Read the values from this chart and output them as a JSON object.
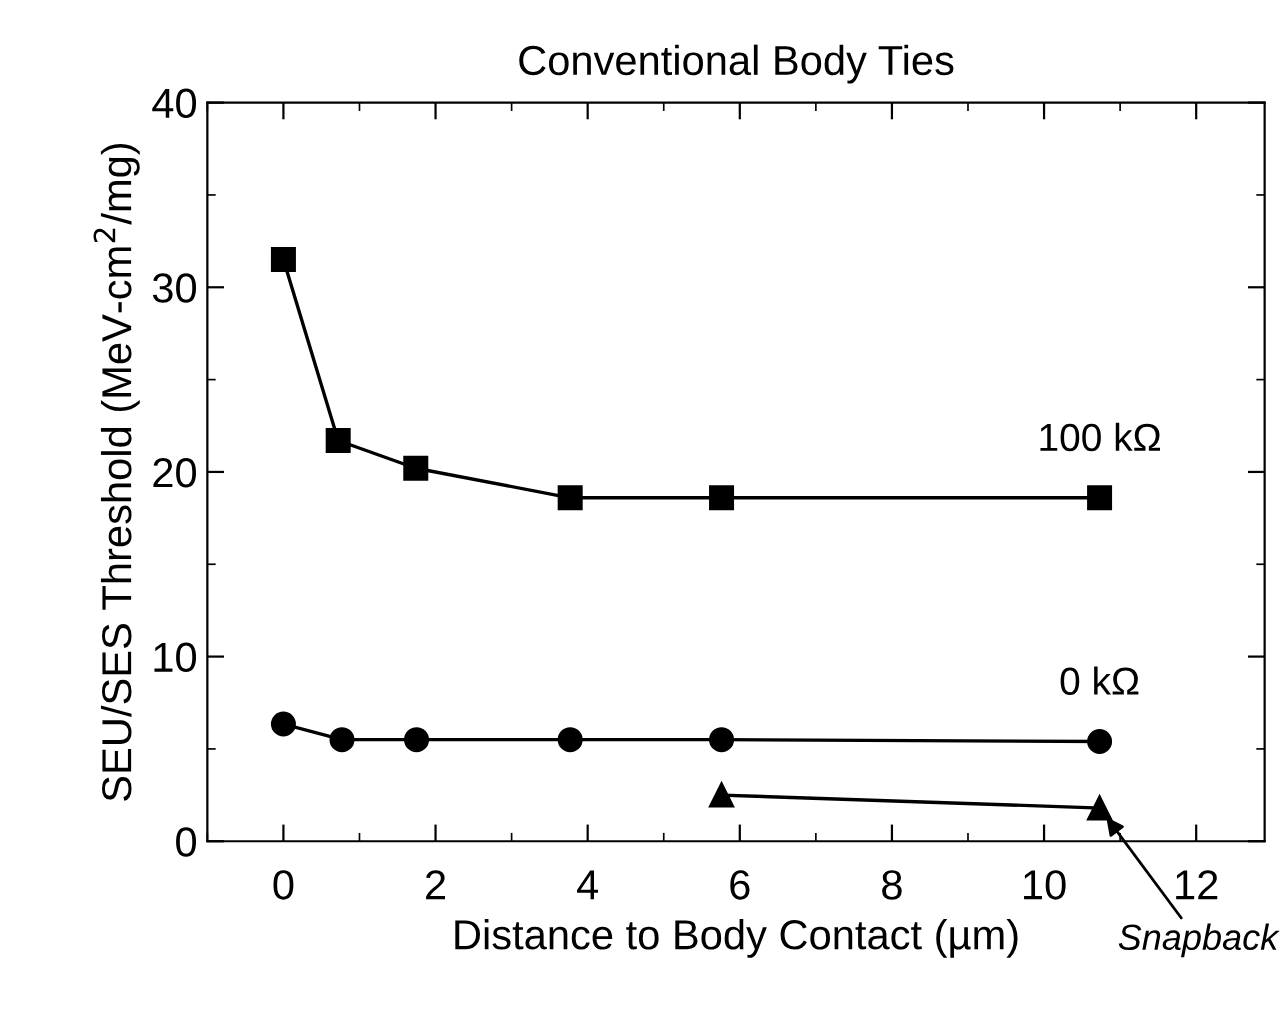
{
  "chart_data": {
    "type": "line",
    "title": "Conventional Body Ties",
    "xlabel": "Distance to Body Contact (µm)",
    "ylabel": "SEU/SES Threshold (MeV-cm$^{2}$/mg)",
    "xlim": [
      -1,
      12.9
    ],
    "ylim": [
      0,
      40
    ],
    "xticks": [
      0,
      2,
      4,
      6,
      8,
      10,
      12
    ],
    "yticks": [
      0,
      10,
      20,
      30,
      40
    ],
    "grid": false,
    "legend": false,
    "line_style": "solid",
    "series": [
      {
        "name": "100 kΩ",
        "color": "#000000",
        "marker": "square",
        "x": [
          0,
          0.72,
          1.74,
          3.77,
          5.76,
          10.73
        ],
        "values": [
          31.5,
          21.7,
          20.2,
          18.6,
          18.6,
          18.6
        ]
      },
      {
        "name": "0 kΩ",
        "color": "#000000",
        "marker": "circle",
        "x": [
          0,
          0.77,
          1.75,
          3.77,
          5.76,
          10.73
        ],
        "values": [
          6.35,
          5.5,
          5.5,
          5.5,
          5.5,
          5.4
        ]
      },
      {
        "color": "#000000",
        "marker": "triangle",
        "x": [
          5.76,
          10.73
        ],
        "values": [
          2.5,
          1.8
        ]
      }
    ],
    "annotations": [
      {
        "text": "Snapback",
        "x": 10.73,
        "y": 1.8
      }
    ]
  }
}
